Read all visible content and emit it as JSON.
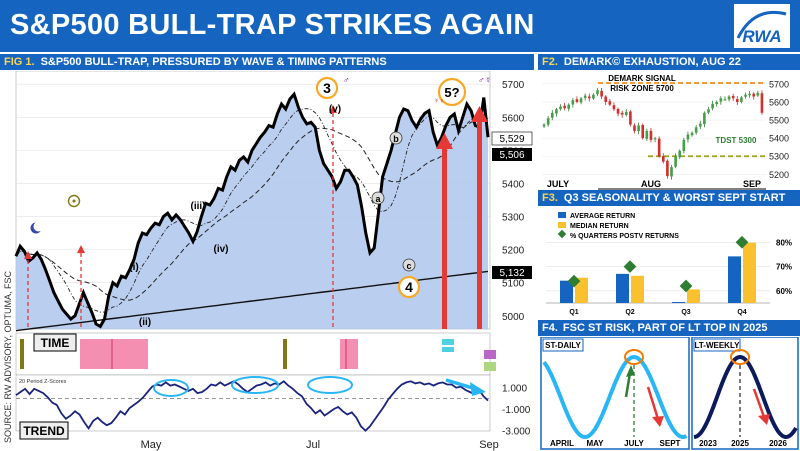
{
  "header": {
    "title": "S&P500 BULL-TRAP STRIKES AGAIN",
    "logo": "RWA"
  },
  "fig1": {
    "label": "FIG 1.",
    "title": "S&P500 BULL-TRAP, PRESSURED BY WAVE & TIMING PATTERNS",
    "source": "SOURCE: RW ADVISORY, OPTUMA, FSC",
    "time_label": "TIME",
    "trend_label": "TREND",
    "zscore_caption": "20 Period Z-Scores",
    "wave_labels": {
      "w3": "3",
      "w5": "5?",
      "w4": "4",
      "v": "(v)",
      "i": "(i)",
      "ii": "(ii)",
      "iii": "(iii)",
      "iv": "(iv)",
      "a": "a",
      "b": "b",
      "c": "c"
    },
    "price_callouts": [
      "5,529",
      "5,506",
      "5,132"
    ],
    "zscore_ticks": [
      "1.000",
      "-1.000",
      "-3.000"
    ],
    "chart_data": {
      "type": "line",
      "x_ticks": [
        "May",
        "Jul",
        "Sep"
      ],
      "y_ticks": [
        5000,
        5100,
        5200,
        5300,
        5400,
        5500,
        5600,
        5700
      ],
      "ylim": [
        4960,
        5740
      ],
      "series": [
        {
          "values": [
            5180,
            5210,
            5195,
            5165,
            5175,
            5190,
            5170,
            5140,
            5105,
            5070,
            5045,
            5020,
            5005,
            4990,
            5000,
            5035,
            5070,
            5040,
            5010,
            4975,
            4968,
            4990,
            5060,
            5100,
            5090,
            5120,
            5115,
            5140,
            5170,
            5220,
            5250,
            5245,
            5265,
            5280,
            5275,
            5300,
            5310,
            5290,
            5305,
            5290,
            5270,
            5250,
            5225,
            5255,
            5300,
            5340,
            5335,
            5355,
            5385,
            5380,
            5420,
            5450,
            5440,
            5470,
            5480,
            5465,
            5500,
            5520,
            5540,
            5555,
            5575,
            5570,
            5610,
            5640,
            5625,
            5655,
            5670,
            5630,
            5600,
            5580,
            5585,
            5570,
            5500,
            5460,
            5440,
            5420,
            5385,
            5405,
            5440,
            5440,
            5420,
            5395,
            5330,
            5250,
            5190,
            5205,
            5310,
            5420,
            5460,
            5500,
            5550,
            5600,
            5625,
            5620,
            5590,
            5570,
            5595,
            5612,
            5620,
            5555,
            5515,
            5540,
            5575,
            5600,
            5610,
            5560,
            5600,
            5640,
            5620,
            5575,
            5570,
            5660,
            5540
          ]
        }
      ]
    },
    "zscore_data": {
      "ylim": [
        -3.6,
        2.0
      ],
      "values": [
        0.3,
        0.6,
        0.9,
        0.4,
        0.9,
        0.7,
        0.5,
        0.1,
        -0.4,
        -0.6,
        -1.4,
        -1.9,
        -1.6,
        -1.2,
        -1.5,
        -2.2,
        -2.8,
        -2.1,
        -1.8,
        -2.2,
        -2.5,
        -2.3,
        -1.8,
        -1.2,
        -1.5,
        -0.9,
        -0.6,
        -0.3,
        0.1,
        0.6,
        1.1,
        1.3,
        1.2,
        1.5,
        1.2,
        1.3,
        1.1,
        0.9,
        0.7,
        0.9,
        0.5,
        0.6,
        0.9,
        1.3,
        1.2,
        1.5,
        1.2,
        1.4,
        1.6,
        1.3,
        0.9,
        0.6,
        0.9,
        1.2,
        1.3,
        1.5,
        1.2,
        1.4,
        1.3,
        1.6,
        1.2,
        0.9,
        0.5,
        0.2,
        -0.5,
        -0.9,
        -1.4,
        -1.1,
        -1.6,
        -1.3,
        -1.0,
        -0.8,
        -1.2,
        -1.5,
        -1.3,
        -1.8,
        -2.6,
        -3.0,
        -2.6,
        -2.0,
        -1.4,
        -0.8,
        -0.1,
        0.4,
        0.9,
        1.3,
        1.5,
        1.6,
        1.4,
        1.5,
        1.3,
        1.4,
        1.2,
        1.4,
        1.5,
        1.3,
        1.3,
        1.0,
        1.1,
        0.8,
        0.6,
        0.4,
        0.8,
        0.2,
        -0.2
      ]
    }
  },
  "fig2": {
    "label": "F2.",
    "title": "DEMARK© EXHAUSTION, AUG 22",
    "signal_label": "DEMARK SIGNAL",
    "zone_label": "RISK ZONE 5700",
    "tdst_label": "TDST 5300",
    "x_ticks": [
      "JULY",
      "AUG",
      "SEP"
    ],
    "y_ticks": [
      5200,
      5300,
      5400,
      5500,
      5600,
      5700
    ],
    "ylim": [
      5130,
      5760
    ],
    "closes": [
      5475,
      5510,
      5540,
      5560,
      5575,
      5565,
      5585,
      5610,
      5600,
      5620,
      5635,
      5620,
      5640,
      5665,
      5630,
      5600,
      5585,
      5560,
      5535,
      5530,
      5545,
      5475,
      5440,
      5470,
      5400,
      5440,
      5390,
      5400,
      5300,
      5270,
      5190,
      5240,
      5300,
      5330,
      5390,
      5420,
      5430,
      5460,
      5480,
      5540,
      5560,
      5590,
      5600,
      5620,
      5615,
      5630,
      5620,
      5600,
      5625,
      5640,
      5645,
      5630,
      5650,
      5540
    ]
  },
  "fig3": {
    "label": "F3.",
    "title": "Q3 SEASONALITY & WORST SEPT START",
    "legend": [
      "AVERAGE RETURN",
      "MEDIAN RETURN",
      "% QUARTERS POSTV RETURNS"
    ],
    "right_ticks": [
      "80%",
      "70%",
      "60%"
    ],
    "colors": {
      "average": "#1565c0",
      "median": "#fbc02d",
      "positive": "#2e7d32"
    },
    "chart_data": {
      "type": "bar",
      "categories": [
        "Q1",
        "Q2",
        "Q3",
        "Q4"
      ],
      "series": [
        {
          "name": "AVERAGE RETURN",
          "values": [
            2.3,
            3.0,
            0.1,
            4.8
          ]
        },
        {
          "name": "MEDIAN RETURN",
          "values": [
            2.6,
            2.8,
            1.4,
            6.2
          ]
        },
        {
          "name": "% QUARTERS POSTV RETURNS",
          "values": [
            64,
            70,
            62,
            80
          ]
        }
      ]
    }
  },
  "fig4": {
    "label": "F4.",
    "title": "FSC ST RISK, PART OF LT TOP IN 2025",
    "daily_label": "ST-DAILY",
    "weekly_label": "LT-WEEKLY",
    "daily_ticks": [
      "APRIL",
      "MAY",
      "JULY",
      "SEPT"
    ],
    "weekly_ticks": [
      "2023",
      "2025",
      "2026"
    ]
  }
}
